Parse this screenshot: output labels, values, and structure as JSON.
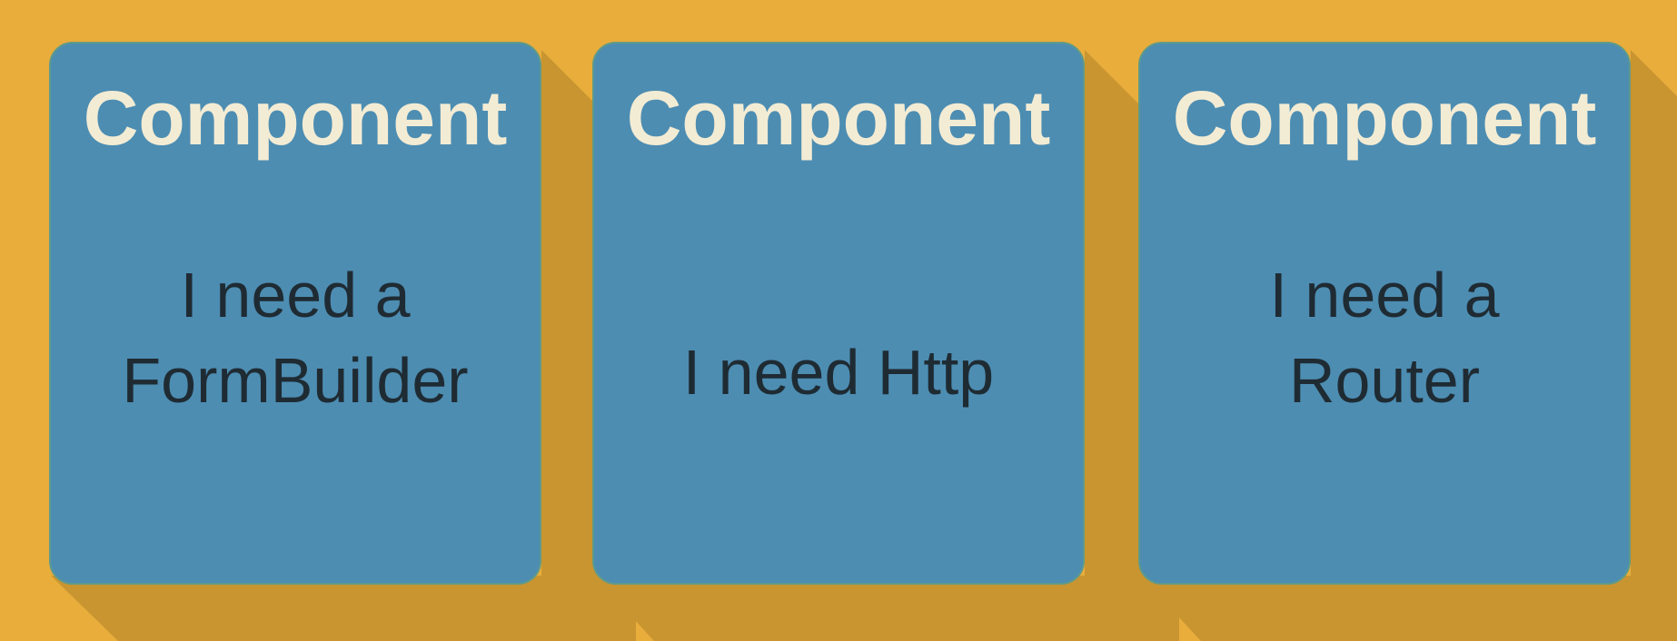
{
  "colors": {
    "background": "#e9ad3c",
    "shadow": "#c99530",
    "card_fill": "#4d8db2",
    "card_border": "#5f9a8a",
    "title_text": "#f3ecd4",
    "body_text": "#1f2b33"
  },
  "cards": [
    {
      "title": "Component",
      "lines": [
        "I need a",
        "FormBuilder"
      ]
    },
    {
      "title": "Component",
      "lines": [
        "I need Http"
      ]
    },
    {
      "title": "Component",
      "lines": [
        "I need a",
        "Router"
      ]
    }
  ]
}
